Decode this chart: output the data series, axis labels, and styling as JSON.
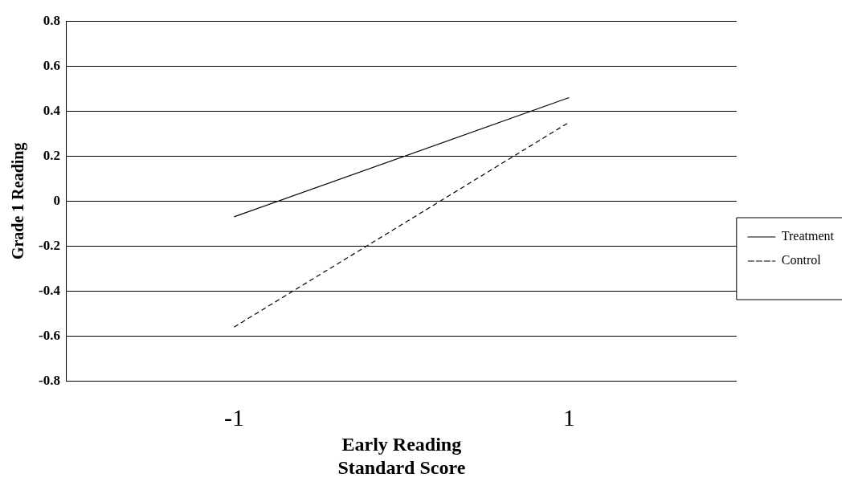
{
  "chart_data": {
    "type": "line",
    "xlabel": "Early Reading Standard Score",
    "ylabel": "Grade 1 Reading",
    "categories": [
      "-1",
      "1"
    ],
    "series": [
      {
        "name": "Treatment",
        "color": "#000000",
        "values": [
          -0.07,
          0.46
        ],
        "line_style": "solid"
      },
      {
        "name": "Control",
        "color": "#000000",
        "values": [
          -0.56,
          0.35
        ],
        "line_style": "dashed"
      }
    ],
    "ylim": [
      -0.8,
      0.8
    ],
    "yticks": [
      -0.8,
      -0.6,
      -0.4,
      -0.2,
      0,
      0.2,
      0.4,
      0.6,
      0.8
    ],
    "grid": "y",
    "legend": "right",
    "marker": "none"
  }
}
